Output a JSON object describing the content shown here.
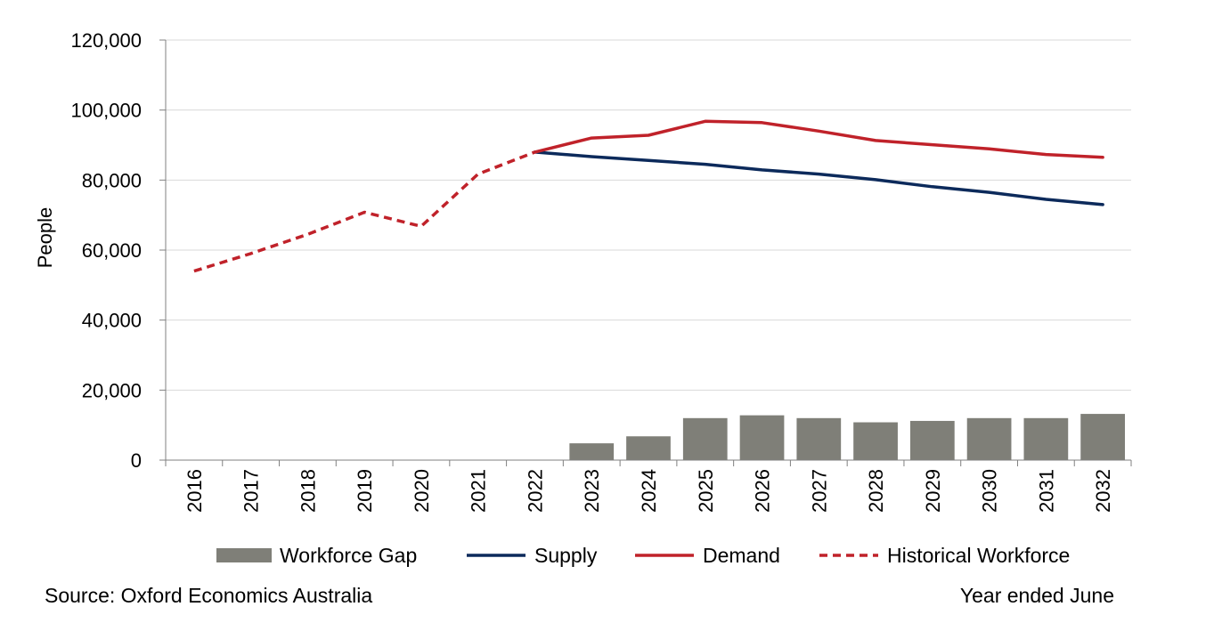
{
  "chart_data": {
    "type": "bar",
    "title": "",
    "xlabel": "",
    "ylabel": "People",
    "ylim": [
      0,
      120000
    ],
    "yticks": [
      0,
      20000,
      40000,
      60000,
      80000,
      100000,
      120000
    ],
    "ytick_labels": [
      "0",
      "20,000",
      "40,000",
      "60,000",
      "80,000",
      "100,000",
      "120,000"
    ],
    "categories": [
      "2016",
      "2017",
      "2018",
      "2019",
      "2020",
      "2021",
      "2022",
      "2023",
      "2024",
      "2025",
      "2026",
      "2027",
      "2028",
      "2029",
      "2030",
      "2031",
      "2032"
    ],
    "grid": true,
    "legend_position": "bottom",
    "series": [
      {
        "name": "Workforce Gap",
        "kind": "bar",
        "color": "#7f7f78",
        "values": [
          null,
          null,
          null,
          null,
          null,
          null,
          null,
          4800,
          6800,
          12000,
          12800,
          12000,
          10800,
          11200,
          12000,
          12000,
          13200
        ]
      },
      {
        "name": "Supply",
        "kind": "line",
        "color": "#0c2a5b",
        "dash": "solid",
        "values": [
          null,
          null,
          null,
          null,
          null,
          null,
          88000,
          86700,
          85600,
          84500,
          82900,
          81700,
          80100,
          78100,
          76500,
          74500,
          73000
        ]
      },
      {
        "name": "Demand",
        "kind": "line",
        "color": "#c0222a",
        "dash": "solid",
        "values": [
          null,
          null,
          null,
          null,
          null,
          null,
          88000,
          92000,
          92800,
          96800,
          96400,
          94000,
          91300,
          90100,
          88900,
          87300,
          86500
        ]
      },
      {
        "name": "Historical Workforce",
        "kind": "line",
        "color": "#c0222a",
        "dash": "dashed",
        "values": [
          54000,
          59000,
          64500,
          70800,
          66800,
          81700,
          88000,
          null,
          null,
          null,
          null,
          null,
          null,
          null,
          null,
          null,
          null
        ]
      }
    ]
  },
  "footer": {
    "source": "Source: Oxford Economics Australia",
    "period": "Year ended June"
  }
}
